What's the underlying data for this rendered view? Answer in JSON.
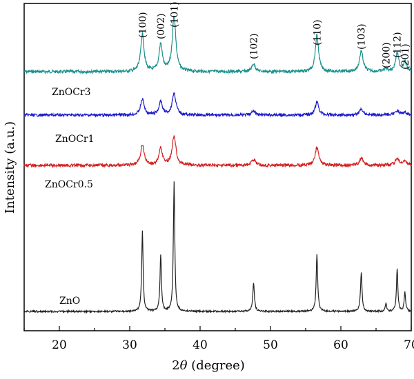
{
  "chart_data": {
    "type": "line",
    "title": "",
    "xlabel_prefix": "2",
    "xlabel_symbol": "θ",
    "xlabel_suffix": " (degree)",
    "ylabel": "Intensity (a.u.)",
    "xlim": [
      15,
      70
    ],
    "xticks": [
      20,
      30,
      40,
      50,
      60,
      70
    ],
    "yticks": [],
    "grid": false,
    "legend": "none",
    "peaks": [
      {
        "hkl": "(100)",
        "pos": 31.8
      },
      {
        "hkl": "(002)",
        "pos": 34.4
      },
      {
        "hkl": "(101)",
        "pos": 36.3
      },
      {
        "hkl": "(102)",
        "pos": 47.6
      },
      {
        "hkl": "(110)",
        "pos": 56.6
      },
      {
        "hkl": "(103)",
        "pos": 62.9
      },
      {
        "hkl": "(200)",
        "pos": 66.4
      },
      {
        "hkl": "(112)",
        "pos": 68.0
      },
      {
        "hkl": "(201)",
        "pos": 69.1
      }
    ],
    "series": [
      {
        "name": "",
        "color": "#1a8f8c",
        "amplitudes": [
          0.62,
          0.45,
          0.92,
          0.13,
          0.6,
          0.34,
          0.05,
          0.3,
          0.16
        ],
        "widths": [
          0.28,
          0.28,
          0.3,
          0.3,
          0.28,
          0.3,
          0.3,
          0.28,
          0.28
        ]
      },
      {
        "name": "ZnOCr3",
        "color": "#1a1acc",
        "amplitudes": [
          0.55,
          0.45,
          0.75,
          0.13,
          0.45,
          0.2,
          0.02,
          0.16,
          0.1
        ],
        "widths": [
          0.3,
          0.3,
          0.32,
          0.32,
          0.3,
          0.32,
          0.32,
          0.3,
          0.3
        ]
      },
      {
        "name": "ZnOCr1",
        "color": "#d42020",
        "amplitudes": [
          0.62,
          0.52,
          0.9,
          0.18,
          0.55,
          0.22,
          0.02,
          0.22,
          0.12
        ],
        "widths": [
          0.3,
          0.3,
          0.32,
          0.32,
          0.3,
          0.32,
          0.32,
          0.3,
          0.3
        ]
      },
      {
        "name": "ZnOCr0.5",
        "color": "#000000",
        "amplitudes": [
          0.0,
          0.0,
          0.0,
          0.0,
          0.0,
          0.0,
          0.0,
          0.0,
          0.0
        ],
        "widths": [
          0.2,
          0.2,
          0.2,
          0.2,
          0.2,
          0.2,
          0.2,
          0.2,
          0.2
        ]
      },
      {
        "name": "ZnO",
        "color": "#222222",
        "amplitudes": [
          0.62,
          0.44,
          1.0,
          0.22,
          0.44,
          0.3,
          0.06,
          0.33,
          0.15
        ],
        "widths": [
          0.12,
          0.12,
          0.12,
          0.14,
          0.13,
          0.13,
          0.12,
          0.12,
          0.12
        ]
      }
    ]
  }
}
